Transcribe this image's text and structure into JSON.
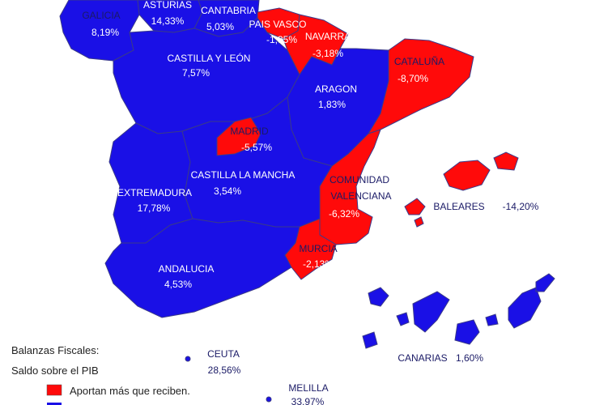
{
  "colors": {
    "receive": "#1a10e6",
    "contribute": "#ff0a0a",
    "border": "#3a3a8a",
    "ocean": "#ffffff"
  },
  "regions": [
    {
      "id": "galicia",
      "name": "GALICIA",
      "value": "8,19%"
    },
    {
      "id": "asturias",
      "name": "ASTURIAS",
      "value": "14,33%"
    },
    {
      "id": "cantabria",
      "name": "CANTABRIA",
      "value": "5,03%"
    },
    {
      "id": "pais-vasco",
      "name": "PAIS VASCO",
      "value": "-1,35%"
    },
    {
      "id": "navarra",
      "name": "NAVARRA",
      "value": "-3,18%"
    },
    {
      "id": "cataluna",
      "name": "CATALUÑA",
      "value": "-8,70%"
    },
    {
      "id": "castilla-leon",
      "name": "CASTILLA Y LEÓN",
      "value": "7,57%"
    },
    {
      "id": "aragon",
      "name": "ARAGON",
      "value": "1,83%"
    },
    {
      "id": "madrid",
      "name": "MADRID",
      "value": "-5,57%"
    },
    {
      "id": "extremadura",
      "name": "EXTREMADURA",
      "value": "17,78%"
    },
    {
      "id": "castilla-la-mancha",
      "name": "CASTILLA LA MANCHA",
      "value": "3,54%"
    },
    {
      "id": "comunidad-valenciana",
      "name_line1": "COMUNIDAD",
      "name_line2": "VALENCIANA",
      "value": "-6,32%"
    },
    {
      "id": "baleares",
      "name": "BALEARES",
      "value": "-14,20%"
    },
    {
      "id": "murcia",
      "name": "MURCIA",
      "value": "-2,13%"
    },
    {
      "id": "andalucia",
      "name": "ANDALUCIA",
      "value": "4,53%"
    },
    {
      "id": "canarias",
      "name": "CANARIAS",
      "value": "1,60%"
    },
    {
      "id": "ceuta",
      "name": "CEUTA",
      "value": "28,56%"
    },
    {
      "id": "melilla",
      "name": "MELILLA",
      "value": "33,97%"
    }
  ],
  "legend": {
    "title_line1": "Balanzas Fiscales:",
    "title_line2": "Saldo sobre el PIB",
    "items": [
      {
        "label": "Aportan más que reciben.",
        "color": "#ff0a0a"
      }
    ]
  }
}
